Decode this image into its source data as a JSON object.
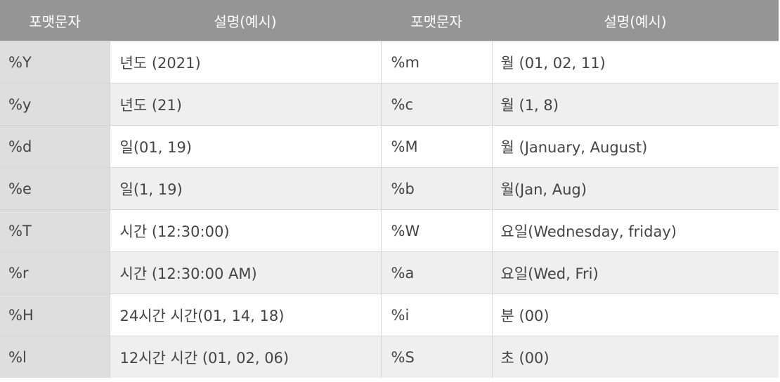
{
  "table": {
    "headers": [
      "포맷문자",
      "설명(예시)",
      "포맷문자",
      "설명(예시)"
    ],
    "rows": [
      {
        "code1": "%Y",
        "desc1": "년도 (2021)",
        "code2": "%m",
        "desc2": "월 (01, 02, 11)"
      },
      {
        "code1": "%y",
        "desc1": "년도 (21)",
        "code2": "%c",
        "desc2": "월 (1, 8)"
      },
      {
        "code1": "%d",
        "desc1": "일(01, 19)",
        "code2": "%M",
        "desc2": "월 (January, August)"
      },
      {
        "code1": "%e",
        "desc1": "일(1, 19)",
        "code2": "%b",
        "desc2": "월(Jan, Aug)"
      },
      {
        "code1": "%T",
        "desc1": "시간 (12:30:00)",
        "code2": "%W",
        "desc2": "요일(Wednesday, friday)"
      },
      {
        "code1": "%r",
        "desc1": "시간 (12:30:00 AM)",
        "code2": "%a",
        "desc2": "요일(Wed, Fri)"
      },
      {
        "code1": "%H",
        "desc1": "24시간 시간(01, 14, 18)",
        "code2": "%i",
        "desc2": "분 (00)"
      },
      {
        "code1": "%l",
        "desc1": "12시간 시간 (01, 02, 06)",
        "code2": "%S",
        "desc2": "초 (00)"
      }
    ]
  },
  "colors": {
    "header_bg": "#959595",
    "header_text": "#ffffff",
    "code_col_bg": "#dedede",
    "row_alt_bg": "#efefef",
    "body_text": "#444444"
  }
}
